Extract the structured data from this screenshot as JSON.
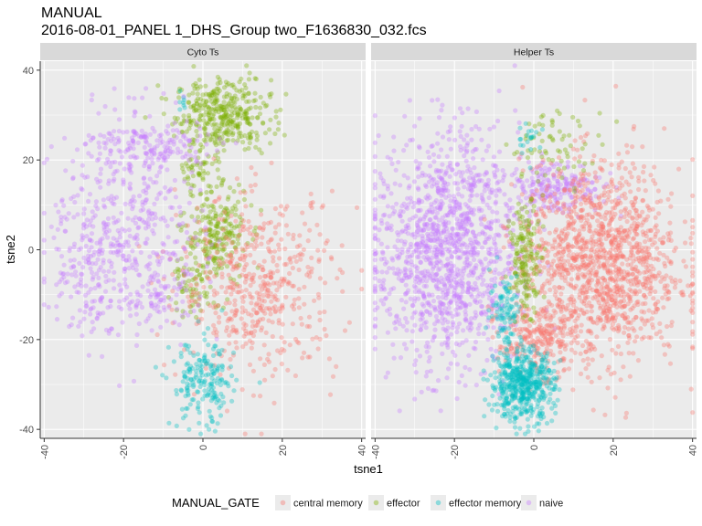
{
  "title_line1": "MANUAL",
  "title_line2": "2016-08-01_PANEL 1_DHS_Group two_F1636830_032.fcs",
  "chart_data": {
    "type": "scatter",
    "xlabel": "tsne1",
    "ylabel": "tsne2",
    "xlim": [
      -41,
      41
    ],
    "ylim": [
      -42,
      42
    ],
    "x_ticks": [
      -40,
      -20,
      0,
      20,
      40
    ],
    "y_ticks": [
      -40,
      -20,
      0,
      20,
      40
    ],
    "x_tick_labels": [
      "-40",
      "-20",
      "0",
      "20",
      "40"
    ],
    "y_tick_labels": [
      "-40",
      "-20",
      "0",
      "20",
      "40"
    ],
    "grid": true,
    "legend_position": "bottom",
    "legend_title": "MANUAL_GATE",
    "panels": [
      "Cyto Ts",
      "Helper Ts"
    ],
    "series": [
      {
        "name": "central memory",
        "color": "#F8766D"
      },
      {
        "name": "effector",
        "color": "#7CAE00"
      },
      {
        "name": "effector memory",
        "color": "#00BFC4"
      },
      {
        "name": "naive",
        "color": "#C77CFF"
      }
    ],
    "clusters": [
      {
        "panel": 0,
        "series": 1,
        "cx": 5,
        "cy": 30,
        "sx": 6,
        "sy": 4,
        "n": 380
      },
      {
        "panel": 0,
        "series": 1,
        "cx": 3,
        "cy": 3,
        "sx": 4,
        "sy": 6,
        "n": 260
      },
      {
        "panel": 0,
        "series": 1,
        "cx": -4,
        "cy": -9,
        "sx": 2.5,
        "sy": 2.5,
        "n": 50
      },
      {
        "panel": 0,
        "series": 1,
        "cx": -1,
        "cy": 18,
        "sx": 3,
        "sy": 2,
        "n": 40
      },
      {
        "panel": 0,
        "series": 0,
        "cx": 14,
        "cy": -8,
        "sx": 10,
        "sy": 10,
        "n": 520
      },
      {
        "panel": 0,
        "series": 2,
        "cx": 0,
        "cy": -30,
        "sx": 4,
        "sy": 5,
        "n": 190
      },
      {
        "panel": 0,
        "series": 2,
        "cx": -5,
        "cy": 33,
        "sx": 1,
        "sy": 1,
        "n": 8
      },
      {
        "panel": 0,
        "series": 3,
        "cx": -18,
        "cy": 5,
        "sx": 9,
        "sy": 12,
        "n": 420
      },
      {
        "panel": 0,
        "series": 3,
        "cx": -30,
        "cy": -2,
        "sx": 5,
        "sy": 8,
        "n": 140
      },
      {
        "panel": 0,
        "series": 3,
        "cx": -12,
        "cy": 23,
        "sx": 8,
        "sy": 3,
        "n": 150
      },
      {
        "panel": 0,
        "series": 3,
        "cx": -10,
        "cy": -10,
        "sx": 3,
        "sy": 4,
        "n": 60
      },
      {
        "panel": 1,
        "series": 3,
        "cx": -22,
        "cy": 0,
        "sx": 9,
        "sy": 13,
        "n": 1300
      },
      {
        "panel": 1,
        "series": 3,
        "cx": 5,
        "cy": 14,
        "sx": 6,
        "sy": 3,
        "n": 220
      },
      {
        "panel": 1,
        "series": 0,
        "cx": 17,
        "cy": -3,
        "sx": 10,
        "sy": 11,
        "n": 1350
      },
      {
        "panel": 1,
        "series": 0,
        "cx": 1,
        "cy": -20,
        "sx": 5,
        "sy": 4,
        "n": 220
      },
      {
        "panel": 1,
        "series": 1,
        "cx": -2,
        "cy": -2,
        "sx": 2,
        "sy": 6,
        "n": 170
      },
      {
        "panel": 1,
        "series": 1,
        "cx": 6,
        "cy": 23,
        "sx": 6,
        "sy": 4,
        "n": 70
      },
      {
        "panel": 1,
        "series": 2,
        "cx": -3,
        "cy": -30,
        "sx": 4,
        "sy": 4,
        "n": 520
      },
      {
        "panel": 1,
        "series": 2,
        "cx": -7,
        "cy": -13,
        "sx": 2,
        "sy": 4,
        "n": 90
      },
      {
        "panel": 1,
        "series": 2,
        "cx": -1,
        "cy": 25,
        "sx": 1.5,
        "sy": 2,
        "n": 20
      }
    ]
  }
}
